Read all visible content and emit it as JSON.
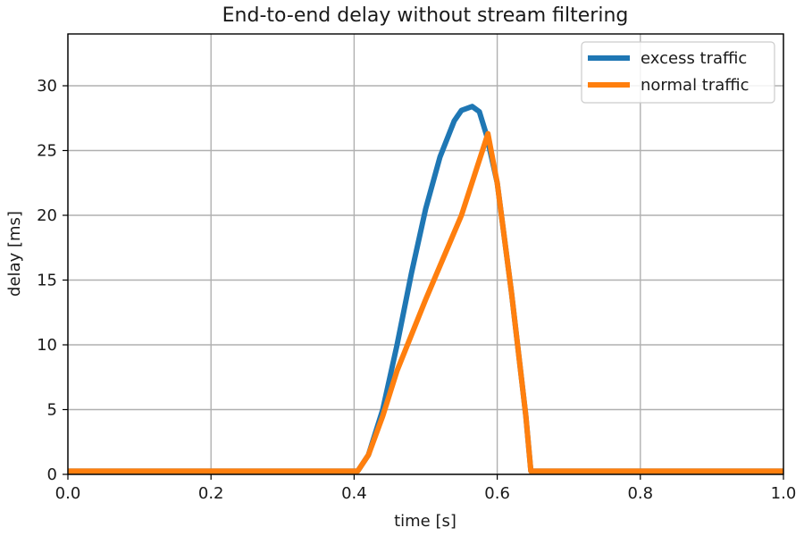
{
  "chart_data": {
    "type": "line",
    "title": "End-to-end delay without stream filtering",
    "xlabel": "time [s]",
    "ylabel": "delay [ms]",
    "xlim": [
      0.0,
      1.0
    ],
    "ylim": [
      0,
      34
    ],
    "xticks": [
      0.0,
      0.2,
      0.4,
      0.6,
      0.8,
      1.0
    ],
    "xtick_labels": [
      "0.0",
      "0.2",
      "0.4",
      "0.6",
      "0.8",
      "1.0"
    ],
    "yticks": [
      0,
      5,
      10,
      15,
      20,
      25,
      30
    ],
    "ytick_labels": [
      "0",
      "5",
      "10",
      "15",
      "20",
      "25",
      "30"
    ],
    "grid": true,
    "legend_position": "top-right",
    "series": [
      {
        "name": "excess traffic",
        "color": "#1f77b4",
        "x": [
          0.0,
          0.405,
          0.42,
          0.44,
          0.46,
          0.48,
          0.5,
          0.52,
          0.54,
          0.55,
          0.565,
          0.575,
          0.585,
          0.6,
          0.62,
          0.64,
          0.647,
          0.65,
          1.0
        ],
        "y": [
          0.25,
          0.25,
          1.5,
          5.0,
          10.0,
          15.5,
          20.5,
          24.5,
          27.3,
          28.1,
          28.4,
          28.0,
          26.2,
          22.5,
          14.0,
          4.5,
          0.25,
          0.25,
          0.25
        ]
      },
      {
        "name": "normal traffic",
        "color": "#ff7f0e",
        "x": [
          0.0,
          0.405,
          0.42,
          0.44,
          0.46,
          0.5,
          0.55,
          0.587,
          0.6,
          0.62,
          0.64,
          0.647,
          0.65,
          1.0
        ],
        "y": [
          0.25,
          0.25,
          1.5,
          4.5,
          8.0,
          13.5,
          20.0,
          26.3,
          22.5,
          14.0,
          4.5,
          0.25,
          0.25,
          0.25
        ]
      }
    ]
  }
}
